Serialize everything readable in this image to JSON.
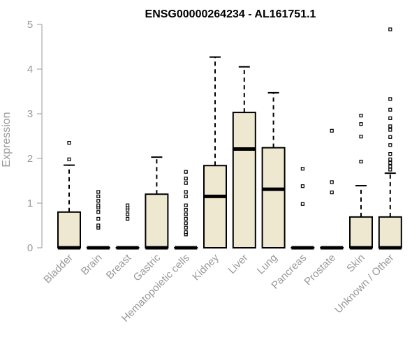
{
  "chart_data": {
    "type": "box",
    "title": "ENSG00000264234 - AL161751.1",
    "xlabel": "",
    "ylabel": "Expression",
    "ylim": [
      0,
      5
    ],
    "yticks": [
      "0",
      "1",
      "2",
      "3",
      "4",
      "5"
    ],
    "categories": [
      "Bladder",
      "Brain",
      "Breast",
      "Gastric",
      "Hematopoietic cells",
      "Kidney",
      "Liver",
      "Lung",
      "Pancreas",
      "Prostate",
      "Skin",
      "Unknown / Other"
    ],
    "boxes": [
      {
        "q1": 0,
        "median": 0,
        "q3": 0.8,
        "whisker_low": 0,
        "whisker_high": 1.85,
        "outliers": [
          1.98,
          2.35
        ]
      },
      {
        "q1": 0,
        "median": 0,
        "q3": 0,
        "whisker_low": 0,
        "whisker_high": 0,
        "outliers": [
          0.45,
          0.5,
          0.65,
          0.8,
          0.9,
          0.95,
          1.05,
          1.15,
          1.25
        ]
      },
      {
        "q1": 0,
        "median": 0,
        "q3": 0,
        "whisker_low": 0,
        "whisker_high": 0,
        "outliers": [
          0.65,
          0.75,
          0.85,
          0.9,
          0.95
        ]
      },
      {
        "q1": 0,
        "median": 0,
        "q3": 1.2,
        "whisker_low": 0,
        "whisker_high": 2.03,
        "outliers": []
      },
      {
        "q1": 0,
        "median": 0,
        "q3": 0,
        "whisker_low": 0,
        "whisker_high": 0,
        "outliers": [
          0.3,
          0.35,
          0.45,
          0.55,
          0.65,
          0.75,
          0.85,
          0.95,
          1.15,
          1.25,
          1.45,
          1.55,
          1.7
        ]
      },
      {
        "q1": 0,
        "median": 1.15,
        "q3": 1.84,
        "whisker_low": 0,
        "whisker_high": 4.27,
        "outliers": []
      },
      {
        "q1": 0,
        "median": 2.21,
        "q3": 3.03,
        "whisker_low": 0,
        "whisker_high": 4.05,
        "outliers": []
      },
      {
        "q1": 0,
        "median": 1.31,
        "q3": 2.24,
        "whisker_low": 0,
        "whisker_high": 3.47,
        "outliers": []
      },
      {
        "q1": 0,
        "median": 0,
        "q3": 0,
        "whisker_low": 0,
        "whisker_high": 0,
        "outliers": [
          0.98,
          1.38,
          1.77
        ]
      },
      {
        "q1": 0,
        "median": 0,
        "q3": 0,
        "whisker_low": 0,
        "whisker_high": 0,
        "outliers": [
          1.24,
          1.47,
          2.62
        ]
      },
      {
        "q1": 0,
        "median": 0,
        "q3": 0.69,
        "whisker_low": 0,
        "whisker_high": 1.39,
        "outliers": [
          1.93,
          2.49,
          2.77,
          2.96
        ]
      },
      {
        "q1": 0,
        "median": 0,
        "q3": 0.69,
        "whisker_low": 0,
        "whisker_high": 1.67,
        "outliers": [
          1.75,
          1.82,
          1.9,
          1.98,
          2.1,
          2.3,
          2.48,
          2.64,
          2.72,
          2.9,
          3.09,
          3.33,
          4.89
        ]
      }
    ],
    "box_fill": "#efe8d0",
    "grid": false,
    "legend": "none"
  }
}
